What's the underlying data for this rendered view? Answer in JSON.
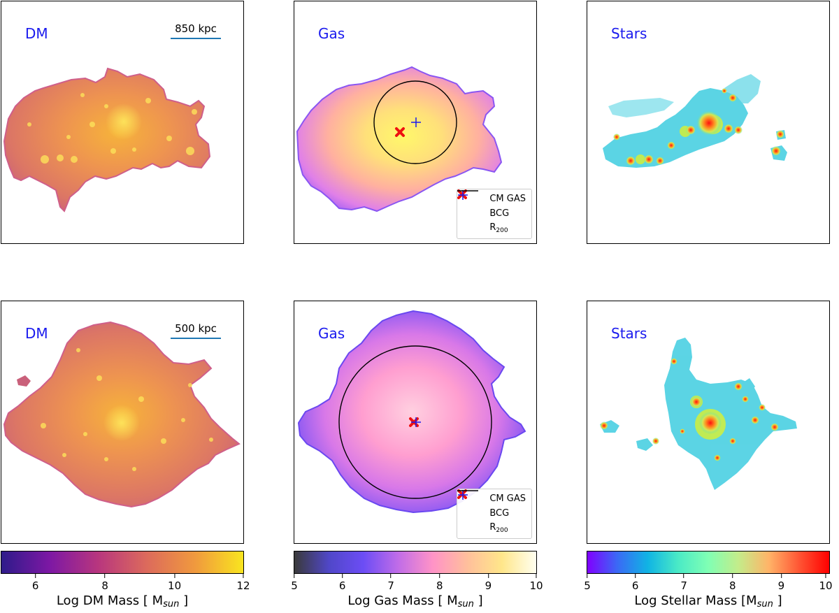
{
  "panels": {
    "top_dm": {
      "label": "DM",
      "scale": "850 kpc"
    },
    "top_gas": {
      "label": "Gas"
    },
    "top_stars": {
      "label": "Stars"
    },
    "bottom_dm": {
      "label": "DM",
      "scale": "500 kpc"
    },
    "bottom_gas": {
      "label": "Gas"
    },
    "bottom_stars": {
      "label": "Stars"
    }
  },
  "legend": {
    "cm_gas": "CM GAS",
    "bcg": "BCG",
    "r200_main": "R",
    "r200_sub": "200"
  },
  "colorbars": {
    "dm": {
      "ticks": [
        "6",
        "8",
        "10",
        "12"
      ],
      "label_main": "Log DM Mass [ M",
      "label_sub": "sun",
      "label_end": " ]",
      "range": [
        5,
        12
      ]
    },
    "gas": {
      "ticks": [
        "5",
        "6",
        "7",
        "8",
        "9",
        "10"
      ],
      "label_main": "Log Gas Mass [ M",
      "label_sub": "sun",
      "label_end": " ]",
      "range": [
        5,
        10
      ]
    },
    "stars": {
      "ticks": [
        "5",
        "6",
        "7",
        "8",
        "9",
        "10"
      ],
      "label_main": "Log Stellar Mass [M",
      "label_sub": "sun",
      "label_end": " ]",
      "range": [
        5,
        10
      ]
    }
  },
  "colors": {
    "label_blue": "#1a1aee",
    "scalebar": "#1f77b4",
    "cm_marker": "#ee1111",
    "bcg_marker": "#1a1aee"
  }
}
